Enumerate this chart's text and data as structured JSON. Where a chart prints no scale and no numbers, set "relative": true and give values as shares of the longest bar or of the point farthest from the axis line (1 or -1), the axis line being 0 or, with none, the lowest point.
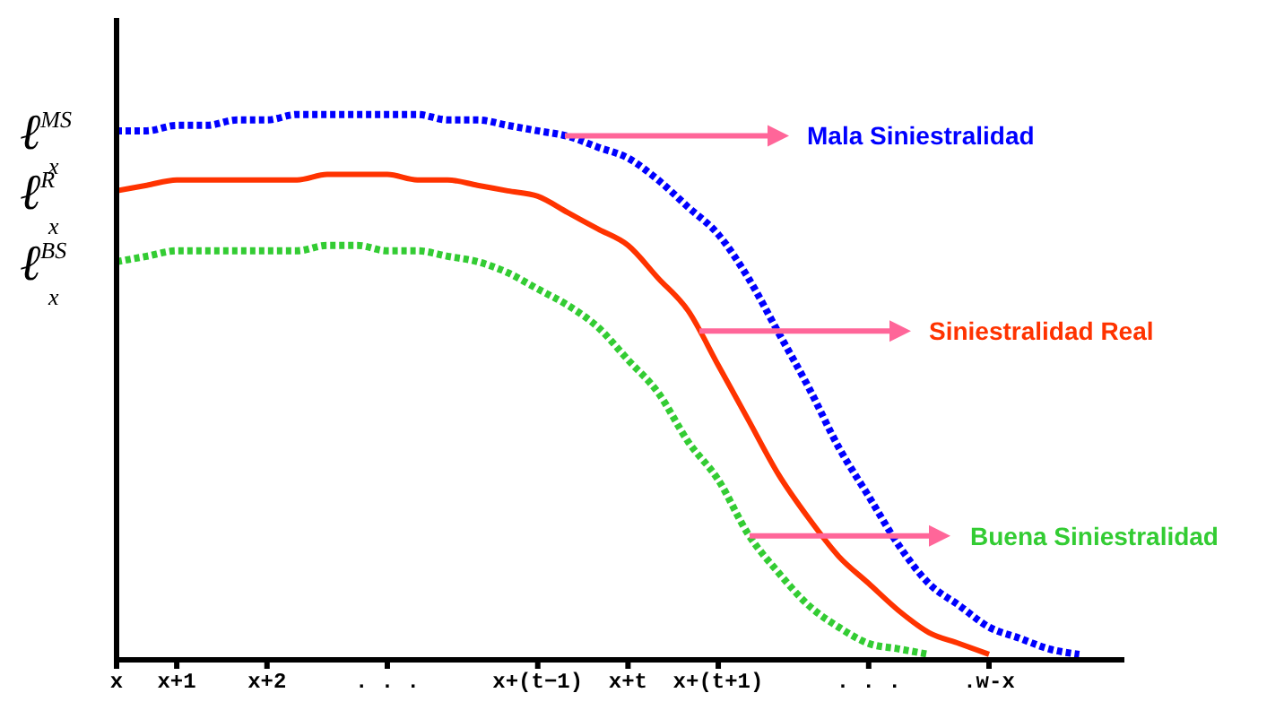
{
  "chart_data": {
    "type": "line",
    "relative": true,
    "categories": [
      "x",
      null,
      "x+1",
      null,
      null,
      "x+2",
      null,
      null,
      null,
      ". . .",
      null,
      null,
      null,
      null,
      "x+(t−1)",
      null,
      null,
      "x+t",
      null,
      null,
      "x+(t+1)",
      null,
      null,
      null,
      null,
      ". . .",
      null,
      null,
      null,
      ".w-x",
      null,
      null,
      null,
      null
    ],
    "series": [
      {
        "name": "Mala Siniestralidad",
        "color": "#0000ff",
        "line_style": "dotted",
        "values": [
          0.97,
          0.97,
          0.98,
          0.98,
          0.99,
          0.99,
          1.0,
          1.0,
          1.0,
          1.0,
          1.0,
          0.99,
          0.99,
          0.98,
          0.97,
          0.96,
          0.94,
          0.92,
          0.88,
          0.83,
          0.78,
          0.7,
          0.6,
          0.5,
          0.39,
          0.3,
          0.21,
          0.14,
          0.1,
          0.06,
          0.04,
          0.02,
          0.01,
          null
        ]
      },
      {
        "name": "Siniestralidad Real",
        "color": "#ff3300",
        "line_style": "solid",
        "values": [
          0.86,
          0.87,
          0.88,
          0.88,
          0.88,
          0.88,
          0.88,
          0.89,
          0.89,
          0.89,
          0.88,
          0.88,
          0.87,
          0.86,
          0.85,
          0.82,
          0.79,
          0.76,
          0.7,
          0.64,
          0.54,
          0.44,
          0.34,
          0.26,
          0.19,
          0.14,
          0.09,
          0.05,
          0.03,
          0.01,
          null,
          null,
          null,
          null
        ]
      },
      {
        "name": "Buena Siniestralidad",
        "color": "#33cc33",
        "line_style": "dotted",
        "values": [
          0.73,
          0.74,
          0.75,
          0.75,
          0.75,
          0.75,
          0.75,
          0.76,
          0.76,
          0.75,
          0.75,
          0.74,
          0.73,
          0.71,
          0.68,
          0.65,
          0.61,
          0.55,
          0.49,
          0.4,
          0.33,
          0.23,
          0.16,
          0.1,
          0.06,
          0.03,
          0.02,
          0.01,
          null,
          null,
          null,
          null,
          null,
          null
        ]
      }
    ],
    "annotations": [
      "ℓ$^{MS}$$_{x}$",
      "ℓ$^{R}$$_{x}$",
      "ℓ$^{BS}$$_{x}$"
    ]
  }
}
